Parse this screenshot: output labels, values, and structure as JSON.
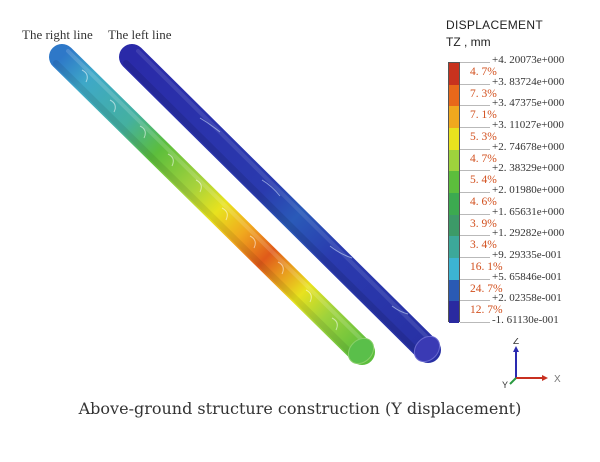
{
  "labels": {
    "right_line": "The right line",
    "left_line": "The left line"
  },
  "legend": {
    "title": "DISPLACEMENT",
    "unit": "TZ , mm",
    "values": [
      "+4. 20073e+000",
      "+3. 83724e+000",
      "+3. 47375e+000",
      "+3. 11027e+000",
      "+2. 74678e+000",
      "+2. 38329e+000",
      "+2. 01980e+000",
      "+1. 65631e+000",
      "+1. 29282e+000",
      "+9. 29335e-001",
      "+5. 65846e-001",
      "+2. 02358e-001",
      "-1. 61130e-001"
    ],
    "percentages": [
      "4. 7%",
      "7. 3%",
      "7. 1%",
      "5. 3%",
      "4. 7%",
      "5. 4%",
      "4. 6%",
      "3. 9%",
      "3. 4%",
      "16. 1%",
      "24. 7%",
      "12. 7%"
    ],
    "colors": [
      "#c8321e",
      "#e8681a",
      "#f0a81e",
      "#e8e21e",
      "#9ed23c",
      "#5cbe3c",
      "#3caa50",
      "#3c9a68",
      "#3ca89a",
      "#3cb4d2",
      "#2a5ab4",
      "#2a2aa0"
    ]
  },
  "axes": {
    "z": "Z",
    "y": "Y",
    "x": "X"
  },
  "caption": "Above-ground structure construction (Y displacement)"
}
